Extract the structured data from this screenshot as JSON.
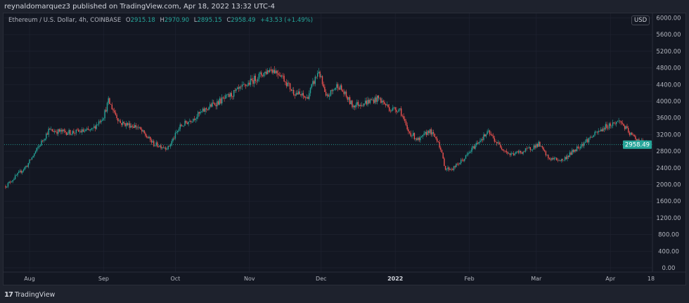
{
  "publish_line": "reynaldomarquez3 published on TradingView.com, Apr 18, 2022 13:32 UTC-4",
  "legend": {
    "symbol": "Ethereum / U.S. Dollar, 4h, COINBASE",
    "o_label": "O",
    "o": "2915.18",
    "h_label": "H",
    "h": "2970.90",
    "l_label": "L",
    "l": "2895.15",
    "c_label": "C",
    "c": "2958.49",
    "change": "+43.53 (+1.49%)"
  },
  "currency_badge": "USD",
  "footer_brand": "TradingView",
  "colors": {
    "up": "#26a69a",
    "down": "#ef5350",
    "bg": "#131722",
    "grid": "#1f2330"
  },
  "chart_data": {
    "type": "candlestick",
    "title": "Ethereum / U.S. Dollar, 4h, COINBASE",
    "last_price": 2958.49,
    "last_price_label": "2958.49",
    "ylim": [
      0,
      6000
    ],
    "y_ticks": [
      "0.00",
      "400.00",
      "800.00",
      "1200.00",
      "1600.00",
      "2000.00",
      "2400.00",
      "2800.00",
      "3200.00",
      "3600.00",
      "4000.00",
      "4400.00",
      "4800.00",
      "5200.00",
      "5600.00",
      "6000.00"
    ],
    "x_ticks": [
      {
        "label": "Aug",
        "day": 0
      },
      {
        "label": "Sep",
        "day": 31
      },
      {
        "label": "Oct",
        "day": 61
      },
      {
        "label": "Nov",
        "day": 92
      },
      {
        "label": "Dec",
        "day": 122
      },
      {
        "label": "2022",
        "day": 153
      },
      {
        "label": "Feb",
        "day": 184
      },
      {
        "label": "Mar",
        "day": 212
      },
      {
        "label": "Apr",
        "day": 243
      },
      {
        "label": "18",
        "day": 260
      }
    ],
    "price_path_day_offset_from_aug1": [
      [
        -10,
        1960
      ],
      [
        -1,
        2460
      ],
      [
        8,
        3300
      ],
      [
        17,
        3250
      ],
      [
        26,
        3300
      ],
      [
        31,
        3650
      ],
      [
        33,
        4000
      ],
      [
        38,
        3480
      ],
      [
        45,
        3390
      ],
      [
        52,
        2970
      ],
      [
        58,
        2880
      ],
      [
        63,
        3390
      ],
      [
        70,
        3650
      ],
      [
        76,
        3900
      ],
      [
        82,
        4070
      ],
      [
        89,
        4320
      ],
      [
        95,
        4570
      ],
      [
        101,
        4780
      ],
      [
        105,
        4660
      ],
      [
        110,
        4240
      ],
      [
        116,
        4070
      ],
      [
        121,
        4740
      ],
      [
        124,
        4070
      ],
      [
        129,
        4400
      ],
      [
        135,
        3900
      ],
      [
        141,
        3980
      ],
      [
        146,
        4070
      ],
      [
        151,
        3810
      ],
      [
        155,
        3810
      ],
      [
        158,
        3300
      ],
      [
        163,
        3050
      ],
      [
        167,
        3300
      ],
      [
        171,
        3050
      ],
      [
        174,
        2380
      ],
      [
        177,
        2380
      ],
      [
        182,
        2630
      ],
      [
        188,
        3050
      ],
      [
        192,
        3250
      ],
      [
        196,
        2970
      ],
      [
        201,
        2720
      ],
      [
        207,
        2800
      ],
      [
        213,
        2970
      ],
      [
        217,
        2630
      ],
      [
        223,
        2580
      ],
      [
        229,
        2880
      ],
      [
        235,
        3140
      ],
      [
        241,
        3390
      ],
      [
        247,
        3530
      ],
      [
        251,
        3220
      ],
      [
        255,
        3050
      ],
      [
        259,
        2958
      ]
    ]
  }
}
